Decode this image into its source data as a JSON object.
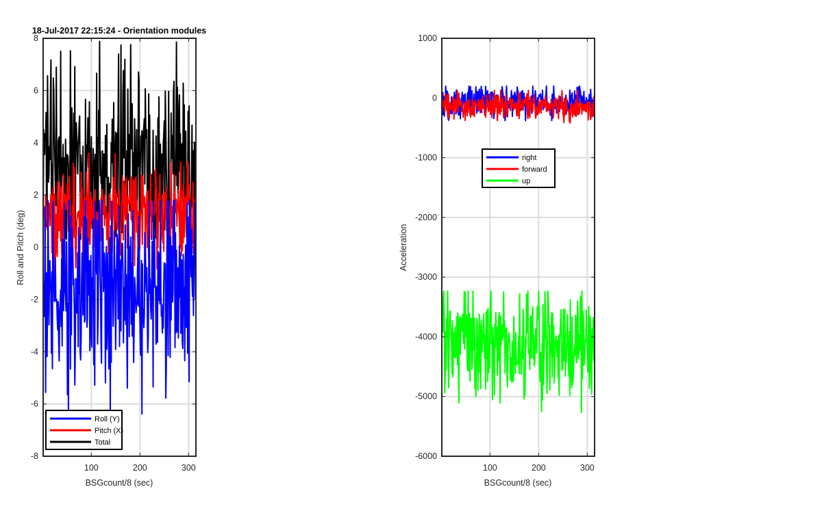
{
  "chart_data": [
    {
      "type": "line",
      "title": "18-Jul-2017 22:15:24 - Orientation modules",
      "xlabel": "BSGcount/8 (sec)",
      "ylabel": "Roll and Pitch (deg)",
      "xlim": [
        1,
        315
      ],
      "ylim": [
        -8,
        8
      ],
      "xticks": [
        100,
        200,
        300
      ],
      "yticks": [
        -8,
        -6,
        -4,
        -2,
        0,
        2,
        4,
        6,
        8
      ],
      "grid": true,
      "legend_position": "bottom-left",
      "series": [
        {
          "name": "Roll (Y)",
          "color": "#0000ff",
          "n_points": 315,
          "approx_mean": -1.5,
          "approx_range": [
            -6.4,
            1.8
          ]
        },
        {
          "name": "Pitch (X)",
          "color": "#ff0000",
          "n_points": 315,
          "approx_mean": 1.2,
          "approx_range": [
            -1.2,
            3.6
          ]
        },
        {
          "name": "Total",
          "color": "#000000",
          "n_points": 315,
          "approx_mean": 3.0,
          "approx_range": [
            0.3,
            7.9
          ]
        }
      ]
    },
    {
      "type": "line",
      "title": "",
      "xlabel": "BSGcount/8 (sec)",
      "ylabel": "Acceleration",
      "xlim": [
        1,
        315
      ],
      "ylim": [
        -6000,
        1000
      ],
      "xticks": [
        100,
        200,
        300
      ],
      "yticks": [
        -6000,
        -5000,
        -4000,
        -3000,
        -2000,
        -1000,
        0,
        1000
      ],
      "grid": true,
      "legend_position": "upper-middle",
      "series": [
        {
          "name": "right",
          "color": "#0000ff",
          "n_points": 315,
          "approx_mean": -60,
          "approx_range": [
            -380,
            200
          ]
        },
        {
          "name": "forward",
          "color": "#ff0000",
          "n_points": 315,
          "approx_mean": -130,
          "approx_range": [
            -420,
            130
          ]
        },
        {
          "name": "up",
          "color": "#00ff00",
          "n_points": 315,
          "approx_mean": -4100,
          "approx_range": [
            -5400,
            -3230
          ]
        }
      ]
    }
  ]
}
